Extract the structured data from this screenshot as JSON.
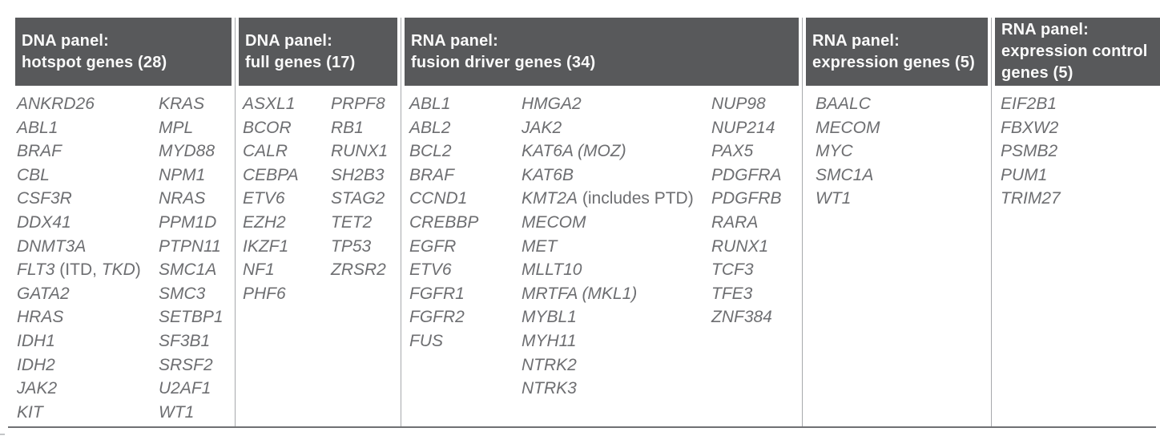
{
  "style": {
    "header_bg": "#58595b",
    "header_text": "#fafafa",
    "gene_text": "#6d6e71",
    "divider": "#a7a9ac",
    "bottom_rule": "#6f7073"
  },
  "panels": [
    {
      "id": "dna-hotspot",
      "header_lines": [
        "DNA panel:",
        "hotspot genes (28)"
      ],
      "gene_count": 28,
      "gene_columns": [
        [
          "ANKRD26",
          "ABL1",
          "BRAF",
          "CBL",
          "CSF3R",
          "DDX41",
          "DNMT3A",
          {
            "segments": [
              {
                "text": "FLT3",
                "italic": true
              },
              {
                "text": " (ITD, ",
                "italic": false
              },
              {
                "text": "TKD",
                "italic": true
              },
              {
                "text": ")",
                "italic": false
              }
            ]
          },
          "GATA2",
          "HRAS",
          "IDH1",
          "IDH2",
          "JAK2",
          "KIT"
        ],
        [
          "KRAS",
          "MPL",
          "MYD88",
          "NPM1",
          "NRAS",
          "PPM1D",
          "PTPN11",
          "SMC1A",
          "SMC3",
          "SETBP1",
          "SF3B1",
          "SRSF2",
          "U2AF1",
          "WT1"
        ]
      ]
    },
    {
      "id": "dna-full",
      "header_lines": [
        "DNA panel:",
        "full genes (17)"
      ],
      "gene_count": 17,
      "gene_columns": [
        [
          "ASXL1",
          "BCOR",
          "CALR",
          "CEBPA",
          "ETV6",
          "EZH2",
          "IKZF1",
          "NF1",
          "PHF6"
        ],
        [
          "PRPF8",
          "RB1",
          "RUNX1",
          "SH2B3",
          "STAG2",
          "TET2",
          "TP53",
          "ZRSR2"
        ]
      ]
    },
    {
      "id": "rna-fusion",
      "header_lines": [
        "RNA panel:",
        "fusion driver genes (34)"
      ],
      "gene_count": 34,
      "gene_columns": [
        [
          "ABL1",
          "ABL2",
          "BCL2",
          "BRAF",
          "CCND1",
          "CREBBP",
          "EGFR",
          "ETV6",
          "FGFR1",
          "FGFR2",
          "FUS"
        ],
        [
          "HMGA2",
          "JAK2",
          "KAT6A (MOZ)",
          "KAT6B",
          {
            "segments": [
              {
                "text": "KMT2A",
                "italic": true
              },
              {
                "text": " (includes PTD)",
                "italic": false
              }
            ]
          },
          "MECOM",
          "MET",
          "MLLT10",
          "MRTFA (MKL1)",
          "MYBL1",
          "MYH11",
          "NTRK2",
          "NTRK3"
        ],
        [
          "NUP98",
          "NUP214",
          "PAX5",
          "PDGFRA",
          "PDGFRB",
          "RARA",
          "RUNX1",
          "TCF3",
          "TFE3",
          "ZNF384"
        ]
      ]
    },
    {
      "id": "rna-expression",
      "header_lines": [
        "RNA panel:",
        "expression genes (5)"
      ],
      "gene_count": 5,
      "gene_columns": [
        [
          "BAALC",
          "MECOM",
          "MYC",
          "SMC1A",
          "WT1"
        ]
      ]
    },
    {
      "id": "rna-expression-control",
      "header_lines": [
        "RNA panel:",
        "expression control",
        "genes (5)"
      ],
      "gene_count": 5,
      "gene_columns": [
        [
          "EIF2B1",
          "FBXW2",
          "PSMB2",
          "PUM1",
          "TRIM27"
        ]
      ]
    }
  ]
}
